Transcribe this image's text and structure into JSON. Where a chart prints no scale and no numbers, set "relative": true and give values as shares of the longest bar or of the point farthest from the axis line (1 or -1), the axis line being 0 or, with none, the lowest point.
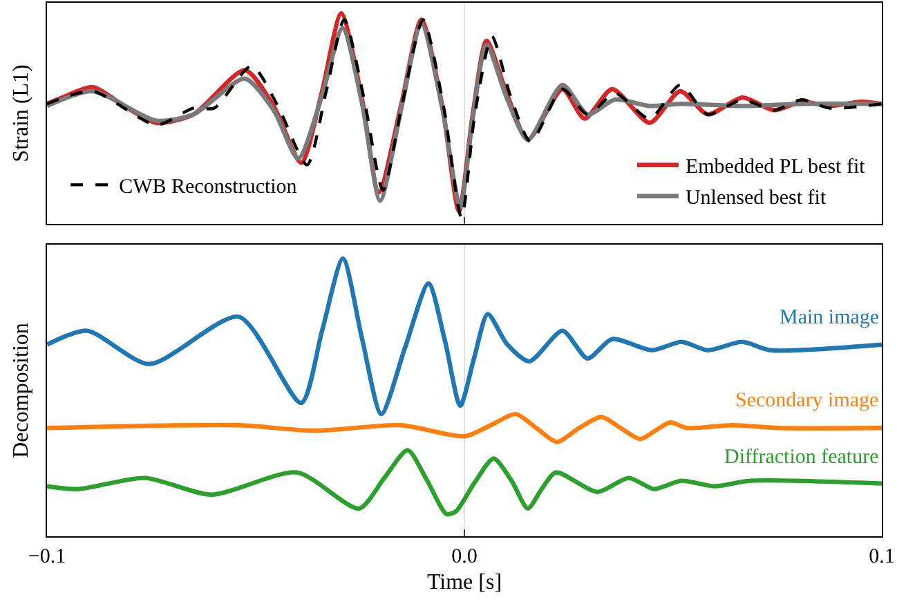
{
  "chart_data": [
    {
      "type": "line",
      "ylabel": "Strain (L1)",
      "relative": true,
      "legend": "bottom",
      "tick_labels": false,
      "grid": false,
      "xlim": [
        -0.1,
        0.1
      ],
      "xticks": [
        {
          "value": -0.1,
          "label": null
        },
        {
          "value": 0,
          "label": null
        },
        {
          "value": 0.1,
          "label": null
        }
      ],
      "ref_lines": [
        {
          "axis": "x",
          "value": 0,
          "color": "#e0e0e0"
        }
      ],
      "series": [
        {
          "name": "Embedded PL best fit",
          "color": "#d62728",
          "x": [
            -0.1,
            -0.0964,
            -0.0891,
            -0.0815,
            -0.0738,
            -0.0649,
            -0.0526,
            -0.0457,
            -0.0391,
            -0.0341,
            -0.0295,
            -0.0245,
            -0.0205,
            -0.0152,
            -0.0103,
            -0.0053,
            -0.0013,
            0.002,
            0.0053,
            0.0103,
            0.0152,
            0.0235,
            0.0288,
            0.0354,
            0.0444,
            0.0517,
            0.0583,
            0.0666,
            0.0742,
            0.0808,
            0.0874,
            0.095,
            0.1
          ],
          "values": [
            0.57,
            0.6,
            0.65,
            0.56,
            0.48,
            0.52,
            0.73,
            0.56,
            0.29,
            0.63,
            1.0,
            0.59,
            0.15,
            0.56,
            0.97,
            0.56,
            0.06,
            0.52,
            0.87,
            0.61,
            0.4,
            0.64,
            0.5,
            0.64,
            0.48,
            0.63,
            0.52,
            0.6,
            0.54,
            0.58,
            0.56,
            0.58,
            0.57
          ]
        },
        {
          "name": "Unlensed best fit",
          "color": "#7a7a7a",
          "x": [
            -0.1,
            -0.0891,
            -0.0738,
            -0.0649,
            -0.0526,
            -0.0457,
            -0.0398,
            -0.0341,
            -0.0292,
            -0.0245,
            -0.0202,
            -0.0152,
            -0.0103,
            -0.0053,
            -0.001,
            0.002,
            0.0053,
            0.0103,
            0.0152,
            0.0235,
            0.0295,
            0.0361,
            0.0444,
            0.0517,
            0.0666,
            0.0808,
            0.1
          ],
          "values": [
            0.56,
            0.63,
            0.49,
            0.52,
            0.69,
            0.54,
            0.31,
            0.61,
            0.93,
            0.57,
            0.11,
            0.54,
            0.95,
            0.55,
            0.08,
            0.5,
            0.85,
            0.59,
            0.4,
            0.66,
            0.52,
            0.59,
            0.56,
            0.57,
            0.56,
            0.57,
            0.57
          ]
        },
        {
          "name": "CWB Reconstruction",
          "color": "#000000",
          "line_style": "dashed",
          "x": [
            -0.1,
            -0.0891,
            -0.0738,
            -0.0649,
            -0.0599,
            -0.051,
            -0.0447,
            -0.0377,
            -0.0331,
            -0.0288,
            -0.024,
            -0.0195,
            -0.015,
            -0.0099,
            -0.005,
            -0.0007,
            0.0025,
            0.0066,
            0.011,
            0.0159,
            0.0235,
            0.0295,
            0.0361,
            0.0444,
            0.0517,
            0.0583,
            0.0666,
            0.0742,
            0.0808,
            0.0874,
            0.1
          ],
          "values": [
            0.57,
            0.63,
            0.47,
            0.55,
            0.55,
            0.75,
            0.56,
            0.28,
            0.63,
            0.97,
            0.59,
            0.16,
            0.56,
            0.97,
            0.56,
            0.03,
            0.52,
            0.89,
            0.61,
            0.39,
            0.64,
            0.52,
            0.62,
            0.5,
            0.66,
            0.52,
            0.59,
            0.54,
            0.59,
            0.55,
            0.57
          ]
        }
      ]
    },
    {
      "type": "line",
      "ylabel": "Decomposition",
      "xlabel": "Time [s]",
      "relative": true,
      "tick_labels": "x",
      "grid": false,
      "xlim": [
        -0.1,
        0.1
      ],
      "xticks": [
        {
          "value": -0.1,
          "label": "−0.1"
        },
        {
          "value": 0,
          "label": "0.0"
        },
        0.1
      ],
      "ref_lines": [
        {
          "axis": "x",
          "value": 0,
          "color": "#e0e0e0"
        }
      ],
      "series": [
        {
          "name": "Main image",
          "color": "#1f77b4",
          "x": [
            -0.1,
            -0.0904,
            -0.0755,
            -0.054,
            -0.0391,
            -0.0341,
            -0.0291,
            -0.0245,
            -0.0199,
            -0.0142,
            -0.0086,
            -0.0046,
            -0.001,
            0.0023,
            0.0056,
            0.0103,
            0.0156,
            0.0235,
            0.0295,
            0.0354,
            0.045,
            0.052,
            0.0583,
            0.0666,
            0.0732,
            0.1
          ],
          "values": [
            0.69,
            0.74,
            0.62,
            0.79,
            0.48,
            0.74,
            1.0,
            0.71,
            0.44,
            0.68,
            0.91,
            0.7,
            0.47,
            0.64,
            0.8,
            0.69,
            0.63,
            0.74,
            0.64,
            0.71,
            0.67,
            0.7,
            0.67,
            0.7,
            0.67,
            0.69
          ]
        },
        {
          "name": "Secondary image",
          "color": "#ff7f0e",
          "x": [
            -0.1,
            -0.054,
            -0.0361,
            -0.0152,
            0.0,
            0.0063,
            0.0123,
            0.0172,
            0.0222,
            0.0275,
            0.0328,
            0.0374,
            0.0421,
            0.0457,
            0.0493,
            0.0533,
            0.0642,
            0.0752,
            0.1
          ],
          "values": [
            0.39,
            0.4,
            0.38,
            0.4,
            0.36,
            0.4,
            0.44,
            0.39,
            0.34,
            0.39,
            0.43,
            0.39,
            0.35,
            0.38,
            0.41,
            0.39,
            0.4,
            0.39,
            0.39
          ]
        },
        {
          "name": "Diffraction feature",
          "color": "#2ca02c",
          "x": [
            -0.1,
            -0.0924,
            -0.0765,
            -0.0606,
            -0.0401,
            -0.0252,
            -0.0192,
            -0.0136,
            -0.0089,
            -0.0043,
            -0.002,
            0.0023,
            0.007,
            0.0113,
            0.0152,
            0.0185,
            0.0219,
            0.0318,
            0.0394,
            0.0454,
            0.052,
            0.0599,
            0.0685,
            0.1
          ],
          "values": [
            0.18,
            0.17,
            0.21,
            0.15,
            0.23,
            0.1,
            0.21,
            0.31,
            0.2,
            0.08,
            0.09,
            0.19,
            0.28,
            0.2,
            0.1,
            0.17,
            0.23,
            0.16,
            0.21,
            0.17,
            0.2,
            0.18,
            0.2,
            0.19
          ]
        }
      ]
    }
  ]
}
